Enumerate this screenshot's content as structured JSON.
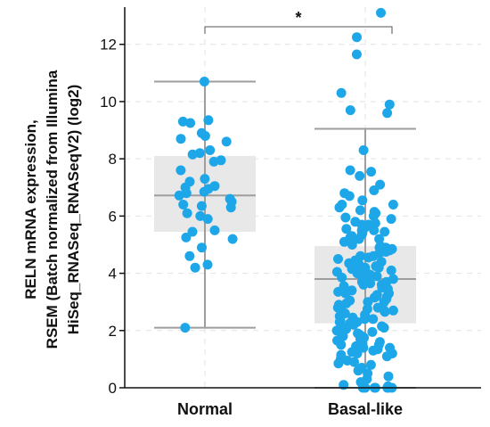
{
  "chart_data": {
    "type": "box-strip",
    "ylabel_lines": [
      "RELN mRNA expression,",
      "RSEM (Batch normalized from Illumina",
      "HiSeq_RNASeq_RNASeqV2) (log2)"
    ],
    "categories": [
      "Normal",
      "Basal-like"
    ],
    "ylim": [
      0,
      13.3
    ],
    "yticks": [
      0,
      2,
      4,
      6,
      8,
      10,
      12
    ],
    "grid": true,
    "significance": {
      "label": "*",
      "between": [
        "Normal",
        "Basal-like"
      ]
    },
    "point_color": "#1EA7E8",
    "box_color": "#E8E8E8",
    "whisker_color": "#9E9E9E",
    "groups": [
      {
        "name": "Normal",
        "box": {
          "q1": 5.45,
          "median": 6.72,
          "q3": 8.1,
          "whisker_low": 2.1,
          "whisker_high": 10.7
        },
        "points": [
          10.7,
          9.35,
          9.3,
          9.25,
          8.9,
          8.8,
          8.7,
          8.6,
          8.3,
          8.2,
          8.15,
          7.95,
          7.9,
          7.6,
          7.3,
          7.2,
          7.05,
          7.0,
          6.95,
          6.85,
          6.8,
          6.72,
          6.6,
          6.5,
          6.4,
          6.35,
          6.3,
          6.1,
          6.0,
          5.9,
          5.5,
          5.45,
          5.25,
          5.2,
          4.9,
          4.6,
          4.3,
          4.2,
          2.1
        ]
      },
      {
        "name": "Basal-like",
        "box": {
          "q1": 2.25,
          "median": 3.8,
          "q3": 4.95,
          "whisker_low": 0.0,
          "whisker_high": 9.05
        },
        "points": [
          13.1,
          12.25,
          11.65,
          10.3,
          9.9,
          9.7,
          9.6,
          8.3,
          7.6,
          7.55,
          7.4,
          7.1,
          6.9,
          6.8,
          6.7,
          6.55,
          6.4,
          6.3,
          6.2,
          6.1,
          6.0,
          5.9,
          5.8,
          5.7,
          5.6,
          5.5,
          5.45,
          5.4,
          5.35,
          5.3,
          5.25,
          5.2,
          5.1,
          5.0,
          4.95,
          4.9,
          4.85,
          4.8,
          4.75,
          4.7,
          4.6,
          4.55,
          4.5,
          4.45,
          4.4,
          4.35,
          4.3,
          4.25,
          4.2,
          4.15,
          4.1,
          4.05,
          4.0,
          3.95,
          3.9,
          3.85,
          3.8,
          3.75,
          3.7,
          3.65,
          3.6,
          3.55,
          3.5,
          3.45,
          3.4,
          3.35,
          3.3,
          3.25,
          3.2,
          3.15,
          3.1,
          3.05,
          3.0,
          2.95,
          2.9,
          2.85,
          2.8,
          2.75,
          2.7,
          2.65,
          2.6,
          2.55,
          2.5,
          2.45,
          2.4,
          2.35,
          2.3,
          2.25,
          2.2,
          2.15,
          2.1,
          2.05,
          2.0,
          1.95,
          1.9,
          1.85,
          1.8,
          1.75,
          1.7,
          1.65,
          1.6,
          1.55,
          1.5,
          1.45,
          1.4,
          1.35,
          1.3,
          1.25,
          1.2,
          1.15,
          1.1,
          1.05,
          1.0,
          0.95,
          0.9,
          0.85,
          0.8,
          0.7,
          0.6,
          0.5,
          0.4,
          0.3,
          0.2,
          0.1,
          0.05,
          0.0,
          0.0,
          0.0,
          0.0,
          0.0,
          0.0,
          0.0,
          4.6,
          4.2,
          3.9,
          3.6,
          3.3,
          3.0,
          2.7,
          2.4,
          2.1,
          1.8,
          1.5,
          1.2,
          5.7,
          5.5,
          5.2,
          4.9,
          4.4,
          4.1,
          3.7,
          3.2,
          2.8,
          2.3,
          1.9,
          1.4,
          6.4,
          6.15,
          5.95,
          5.75,
          5.55
        ]
      }
    ]
  }
}
